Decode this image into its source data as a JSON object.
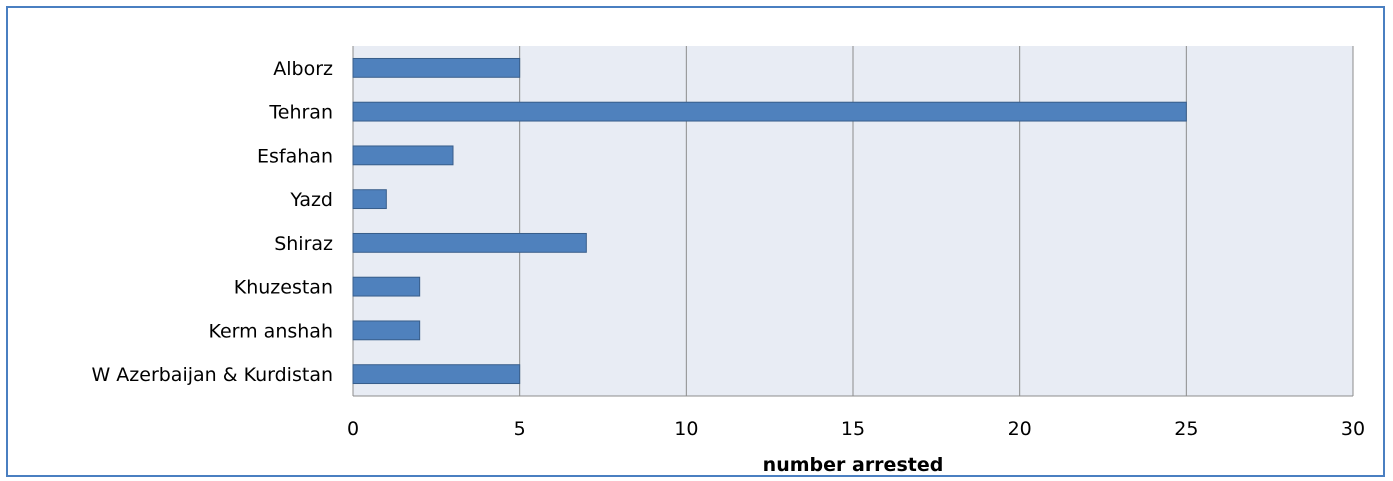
{
  "chart_data": {
    "type": "bar",
    "orientation": "horizontal",
    "title": "",
    "xlabel": "number arrested",
    "ylabel": "",
    "categories": [
      "Alborz",
      "Tehran",
      "Esfahan",
      "Yazd",
      "Shiraz",
      "Khuzestan",
      "Kerm anshah",
      "W Azerbaijan & Kurdistan"
    ],
    "values": [
      5,
      25,
      3,
      1,
      7,
      2,
      2,
      5
    ],
    "xlim": [
      0,
      30
    ],
    "xticks": [
      0,
      5,
      10,
      15,
      20,
      25,
      30
    ],
    "grid": true,
    "legend": "none",
    "colors": {
      "bar_fill": "#4f81bd",
      "bar_stroke": "#385d8a",
      "plot_bg": "#e8ecf4",
      "gridline": "#8c8c8c",
      "frame_border": "#4a7fc1"
    }
  }
}
